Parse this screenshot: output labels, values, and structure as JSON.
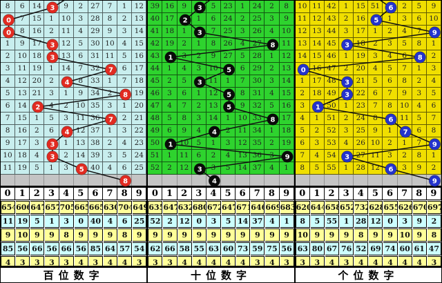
{
  "chart_data": {
    "type": "table",
    "description_rows": 14,
    "panels": [
      {
        "id": "hundreds",
        "title": "百位数字",
        "colors": {
          "grid_bg": "#C8EEEE",
          "circle": "#E12B21",
          "stat_yellow": "#FFFF99",
          "stat_cyan": "#CCFFFF"
        },
        "entry_dx": 40,
        "digit_header": [
          "0",
          "1",
          "2",
          "3",
          "4",
          "5",
          "6",
          "7",
          "8",
          "9"
        ],
        "rows": [
          [
            "8",
            "6",
            "14",
            "3",
            "9",
            "2",
            "27",
            "7",
            "1",
            "12"
          ],
          [
            "0",
            "7",
            "15",
            "1",
            "10",
            "3",
            "28",
            "8",
            "2",
            "13"
          ],
          [
            "0",
            "8",
            "16",
            "2",
            "11",
            "4",
            "29",
            "9",
            "3",
            "14"
          ],
          [
            "1",
            "9",
            "17",
            "3",
            "12",
            "5",
            "30",
            "10",
            "4",
            "15"
          ],
          [
            "2",
            "10",
            "18",
            "3",
            "13",
            "6",
            "31",
            "11",
            "5",
            "16"
          ],
          [
            "3",
            "11",
            "19",
            "1",
            "14",
            "7",
            "32",
            "7",
            "6",
            "17"
          ],
          [
            "4",
            "12",
            "20",
            "2",
            "4",
            "8",
            "33",
            "1",
            "7",
            "18"
          ],
          [
            "5",
            "13",
            "21",
            "3",
            "1",
            "9",
            "34",
            "2",
            "8",
            "19"
          ],
          [
            "6",
            "14",
            "2",
            "4",
            "2",
            "10",
            "35",
            "3",
            "1",
            "20"
          ],
          [
            "7",
            "15",
            "1",
            "5",
            "3",
            "11",
            "36",
            "7",
            "2",
            "21"
          ],
          [
            "8",
            "16",
            "2",
            "6",
            "4",
            "12",
            "37",
            "1",
            "3",
            "22"
          ],
          [
            "9",
            "17",
            "3",
            "3",
            "1",
            "13",
            "38",
            "2",
            "4",
            "23"
          ],
          [
            "10",
            "18",
            "4",
            "3",
            "2",
            "14",
            "39",
            "3",
            "5",
            "24"
          ],
          [
            "11",
            "19",
            "5",
            "1",
            "3",
            "5",
            "40",
            "4",
            "6",
            "25"
          ]
        ],
        "circles": [
          {
            "r": 1,
            "c": 4,
            "v": "3"
          },
          {
            "r": 2,
            "c": 1,
            "v": "0"
          },
          {
            "r": 3,
            "c": 1,
            "v": "0"
          },
          {
            "r": 4,
            "c": 4,
            "v": "3"
          },
          {
            "r": 5,
            "c": 4,
            "v": "3"
          },
          {
            "r": 6,
            "c": 8,
            "v": "7"
          },
          {
            "r": 7,
            "c": 5,
            "v": "4"
          },
          {
            "r": 8,
            "c": 9,
            "v": "8"
          },
          {
            "r": 9,
            "c": 3,
            "v": "2"
          },
          {
            "r": 10,
            "c": 8,
            "v": "7"
          },
          {
            "r": 11,
            "c": 5,
            "v": "4"
          },
          {
            "r": 12,
            "c": 4,
            "v": "3"
          },
          {
            "r": 13,
            "c": 4,
            "v": "3"
          },
          {
            "r": 14,
            "c": 6,
            "v": "5"
          }
        ],
        "next_row_circle": {
          "c": 9,
          "v": "8"
        },
        "stats": [
          [
            "654",
            "606",
            "647",
            "657",
            "705",
            "665",
            "665",
            "630",
            "704",
            "649"
          ],
          [
            "11",
            "19",
            "5",
            "1",
            "3",
            "0",
            "40",
            "4",
            "6",
            "25"
          ],
          [
            "9",
            "10",
            "9",
            "9",
            "8",
            "9",
            "9",
            "9",
            "8",
            "9"
          ],
          [
            "85",
            "56",
            "66",
            "56",
            "66",
            "56",
            "85",
            "64",
            "57",
            "54"
          ],
          [
            "4",
            "3",
            "3",
            "3",
            "3",
            "4",
            "3",
            "4",
            "4",
            "3"
          ]
        ]
      },
      {
        "id": "tens",
        "title": "十位数字",
        "colors": {
          "grid_bg": "#2ED32E",
          "circle": "#0A0A0A",
          "stat_yellow": "#FFFF99",
          "stat_cyan": "#CCFFFF"
        },
        "entry_dx": 34,
        "digit_header": [
          "0",
          "1",
          "2",
          "3",
          "4",
          "5",
          "6",
          "7",
          "8",
          "9"
        ],
        "rows": [
          [
            "39",
            "16",
            "9",
            "3",
            "5",
            "23",
            "1",
            "24",
            "2",
            "8"
          ],
          [
            "40",
            "17",
            "2",
            "1",
            "6",
            "24",
            "2",
            "25",
            "3",
            "9"
          ],
          [
            "41",
            "18",
            "1",
            "3",
            "7",
            "25",
            "3",
            "26",
            "4",
            "10"
          ],
          [
            "42",
            "19",
            "2",
            "1",
            "8",
            "26",
            "4",
            "27",
            "8",
            "11"
          ],
          [
            "43",
            "1",
            "3",
            "2",
            "9",
            "27",
            "5",
            "28",
            "1",
            "12"
          ],
          [
            "44",
            "1",
            "4",
            "3",
            "10",
            "5",
            "6",
            "29",
            "2",
            "13"
          ],
          [
            "45",
            "2",
            "5",
            "3",
            "11",
            "1",
            "7",
            "30",
            "3",
            "14"
          ],
          [
            "46",
            "3",
            "6",
            "1",
            "12",
            "5",
            "8",
            "31",
            "4",
            "15"
          ],
          [
            "47",
            "4",
            "7",
            "2",
            "13",
            "5",
            "9",
            "32",
            "5",
            "16"
          ],
          [
            "48",
            "5",
            "8",
            "3",
            "14",
            "1",
            "10",
            "33",
            "8",
            "17"
          ],
          [
            "49",
            "6",
            "9",
            "4",
            "4",
            "2",
            "11",
            "34",
            "1",
            "18"
          ],
          [
            "50",
            "1",
            "10",
            "5",
            "1",
            "3",
            "12",
            "35",
            "2",
            "19"
          ],
          [
            "51",
            "1",
            "11",
            "6",
            "2",
            "4",
            "13",
            "36",
            "3",
            "9"
          ],
          [
            "52",
            "2",
            "12",
            "3",
            "3",
            "5",
            "14",
            "37",
            "4",
            "1"
          ]
        ],
        "circles": [
          {
            "r": 1,
            "c": 4,
            "v": "3"
          },
          {
            "r": 2,
            "c": 3,
            "v": "2"
          },
          {
            "r": 3,
            "c": 4,
            "v": "3"
          },
          {
            "r": 4,
            "c": 9,
            "v": "8"
          },
          {
            "r": 5,
            "c": 2,
            "v": "1"
          },
          {
            "r": 6,
            "c": 6,
            "v": "5"
          },
          {
            "r": 7,
            "c": 4,
            "v": "3"
          },
          {
            "r": 8,
            "c": 6,
            "v": "5"
          },
          {
            "r": 9,
            "c": 6,
            "v": "5"
          },
          {
            "r": 10,
            "c": 9,
            "v": "8"
          },
          {
            "r": 11,
            "c": 5,
            "v": "4"
          },
          {
            "r": 12,
            "c": 2,
            "v": "1"
          },
          {
            "r": 13,
            "c": 10,
            "v": "9"
          },
          {
            "r": 14,
            "c": 4,
            "v": "3"
          }
        ],
        "next_row_circle": {
          "c": 5,
          "v": "4"
        },
        "stats": [
          [
            "635",
            "647",
            "632",
            "680",
            "672",
            "647",
            "671",
            "646",
            "669",
            "683"
          ],
          [
            "52",
            "2",
            "12",
            "0",
            "3",
            "5",
            "14",
            "37",
            "4",
            "1"
          ],
          [
            "9",
            "9",
            "9",
            "9",
            "9",
            "9",
            "9",
            "9",
            "9",
            "9"
          ],
          [
            "62",
            "66",
            "58",
            "55",
            "63",
            "60",
            "73",
            "59",
            "75",
            "56"
          ],
          [
            "3",
            "3",
            "4",
            "4",
            "4",
            "4",
            "4",
            "3",
            "4",
            "3"
          ]
        ]
      },
      {
        "id": "units",
        "title": "个位数字",
        "colors": {
          "grid_bg": "#F0DF00",
          "circle": "#2433CC",
          "stat_yellow": "#FFFF99",
          "stat_cyan": "#CCFFFF"
        },
        "entry_dx": -36,
        "digit_header": [
          "0",
          "1",
          "2",
          "3",
          "4",
          "5",
          "6",
          "7",
          "8",
          "9"
        ],
        "rows": [
          [
            "10",
            "11",
            "42",
            "1",
            "15",
            "51",
            "6",
            "2",
            "5",
            "9"
          ],
          [
            "11",
            "12",
            "43",
            "2",
            "16",
            "5",
            "1",
            "3",
            "6",
            "10"
          ],
          [
            "12",
            "13",
            "44",
            "3",
            "17",
            "1",
            "2",
            "4",
            "7",
            "9"
          ],
          [
            "13",
            "14",
            "45",
            "3",
            "18",
            "2",
            "3",
            "5",
            "8",
            "1"
          ],
          [
            "14",
            "15",
            "46",
            "1",
            "19",
            "3",
            "4",
            "6",
            "8",
            "2"
          ],
          [
            "0",
            "16",
            "47",
            "2",
            "20",
            "4",
            "5",
            "7",
            "1",
            "3"
          ],
          [
            "1",
            "17",
            "48",
            "3",
            "21",
            "5",
            "6",
            "8",
            "2",
            "4"
          ],
          [
            "2",
            "18",
            "49",
            "3",
            "22",
            "6",
            "7",
            "9",
            "3",
            "5"
          ],
          [
            "3",
            "1",
            "50",
            "1",
            "23",
            "7",
            "8",
            "10",
            "4",
            "6"
          ],
          [
            "4",
            "1",
            "51",
            "2",
            "24",
            "8",
            "6",
            "11",
            "5",
            "7"
          ],
          [
            "5",
            "2",
            "52",
            "3",
            "25",
            "9",
            "1",
            "7",
            "6",
            "8"
          ],
          [
            "6",
            "3",
            "53",
            "4",
            "26",
            "10",
            "2",
            "1",
            "7",
            "9"
          ],
          [
            "7",
            "4",
            "54",
            "3",
            "27",
            "11",
            "3",
            "2",
            "8",
            "1"
          ],
          [
            "8",
            "5",
            "55",
            "1",
            "28",
            "12",
            "6",
            "3",
            "9",
            "2"
          ]
        ],
        "circles": [
          {
            "r": 1,
            "c": 7,
            "v": "6"
          },
          {
            "r": 2,
            "c": 6,
            "v": "5"
          },
          {
            "r": 3,
            "c": 10,
            "v": "9"
          },
          {
            "r": 4,
            "c": 4,
            "v": "3"
          },
          {
            "r": 5,
            "c": 9,
            "v": "8"
          },
          {
            "r": 6,
            "c": 1,
            "v": "0"
          },
          {
            "r": 7,
            "c": 4,
            "v": "3"
          },
          {
            "r": 8,
            "c": 4,
            "v": "3"
          },
          {
            "r": 9,
            "c": 2,
            "v": "1"
          },
          {
            "r": 10,
            "c": 7,
            "v": "6"
          },
          {
            "r": 11,
            "c": 8,
            "v": "7"
          },
          {
            "r": 12,
            "c": 10,
            "v": "9"
          },
          {
            "r": 13,
            "c": 4,
            "v": "3"
          },
          {
            "r": 14,
            "c": 7,
            "v": "6"
          }
        ],
        "next_row_circle": {
          "c": 10,
          "v": "9"
        },
        "stats": [
          [
            "620",
            "644",
            "658",
            "652",
            "732",
            "628",
            "655",
            "626",
            "670",
            "697"
          ],
          [
            "8",
            "5",
            "55",
            "1",
            "28",
            "12",
            "0",
            "3",
            "9",
            "2"
          ],
          [
            "10",
            "9",
            "9",
            "9",
            "8",
            "9",
            "9",
            "10",
            "9",
            "8"
          ],
          [
            "63",
            "80",
            "67",
            "76",
            "52",
            "69",
            "74",
            "60",
            "61",
            "47"
          ],
          [
            "3",
            "3",
            "4",
            "3",
            "4",
            "4",
            "4",
            "4",
            "4",
            "3"
          ]
        ]
      }
    ]
  }
}
